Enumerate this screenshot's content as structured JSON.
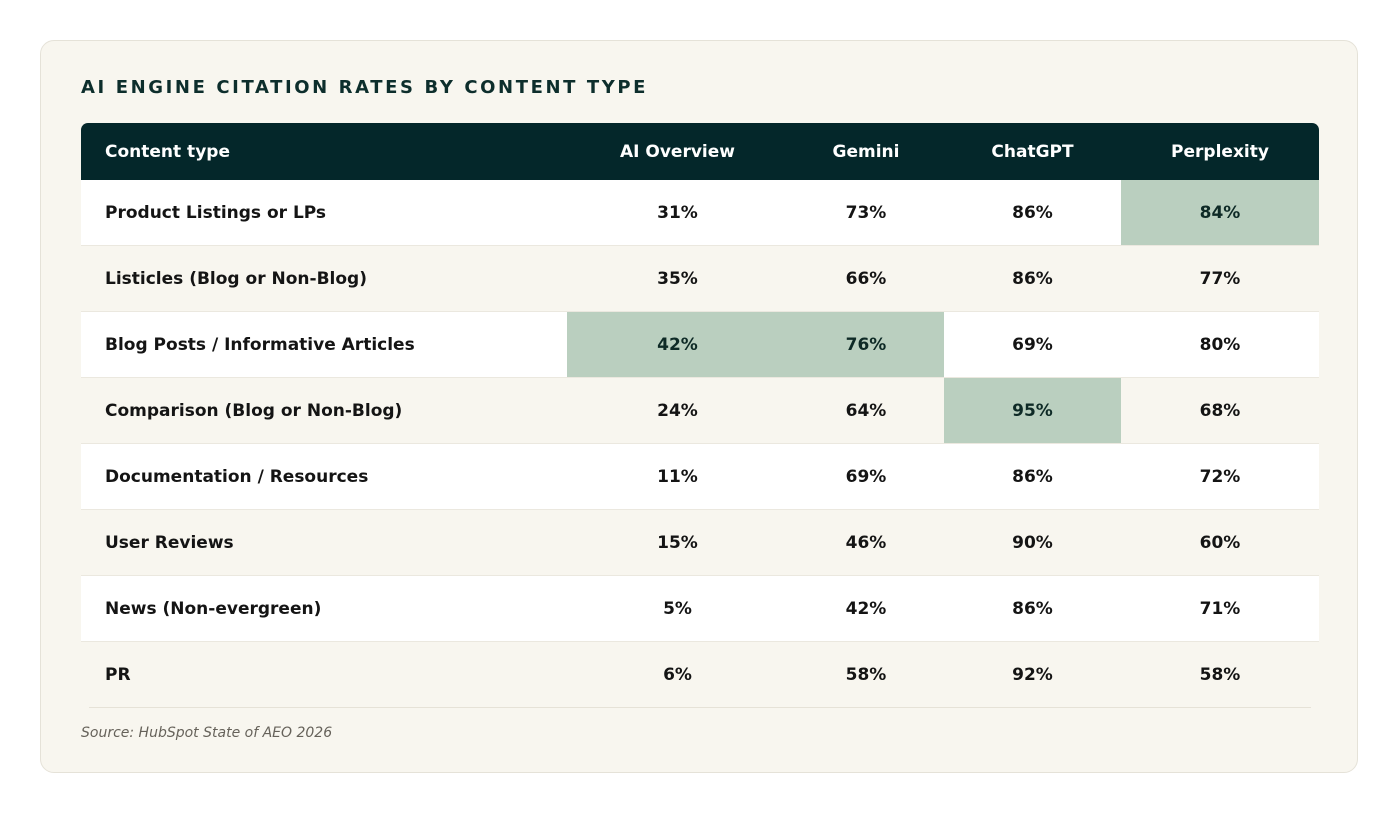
{
  "chart_data": {
    "type": "table",
    "title": "AI ENGINE CITATION RATES BY CONTENT TYPE",
    "columns": [
      "Content type",
      "AI Overview",
      "Gemini",
      "ChatGPT",
      "Perplexity"
    ],
    "rows": [
      {
        "label": "Product Listings or LPs",
        "values": [
          "31%",
          "73%",
          "86%",
          "84%"
        ],
        "highlight": [
          false,
          false,
          false,
          true
        ]
      },
      {
        "label": "Listicles (Blog or Non-Blog)",
        "values": [
          "35%",
          "66%",
          "86%",
          "77%"
        ],
        "highlight": [
          false,
          false,
          false,
          false
        ]
      },
      {
        "label": "Blog Posts / Informative Articles",
        "values": [
          "42%",
          "76%",
          "69%",
          "80%"
        ],
        "highlight": [
          true,
          true,
          false,
          false
        ]
      },
      {
        "label": "Comparison (Blog or Non-Blog)",
        "values": [
          "24%",
          "64%",
          "95%",
          "68%"
        ],
        "highlight": [
          false,
          false,
          true,
          false
        ]
      },
      {
        "label": "Documentation / Resources",
        "values": [
          "11%",
          "69%",
          "86%",
          "72%"
        ],
        "highlight": [
          false,
          false,
          false,
          false
        ]
      },
      {
        "label": "User Reviews",
        "values": [
          "15%",
          "46%",
          "90%",
          "60%"
        ],
        "highlight": [
          false,
          false,
          false,
          false
        ]
      },
      {
        "label": "News (Non-evergreen)",
        "values": [
          "5%",
          "42%",
          "86%",
          "71%"
        ],
        "highlight": [
          false,
          false,
          false,
          false
        ]
      },
      {
        "label": "PR",
        "values": [
          "6%",
          "58%",
          "92%",
          "58%"
        ],
        "highlight": [
          false,
          false,
          false,
          false
        ]
      }
    ],
    "source": "Source: HubSpot State of AEO 2026"
  },
  "colors": {
    "header_bg": "#04272a",
    "highlight_bg": "#bacfbf",
    "card_bg": "#f8f6ef",
    "row_white": "#ffffff"
  }
}
